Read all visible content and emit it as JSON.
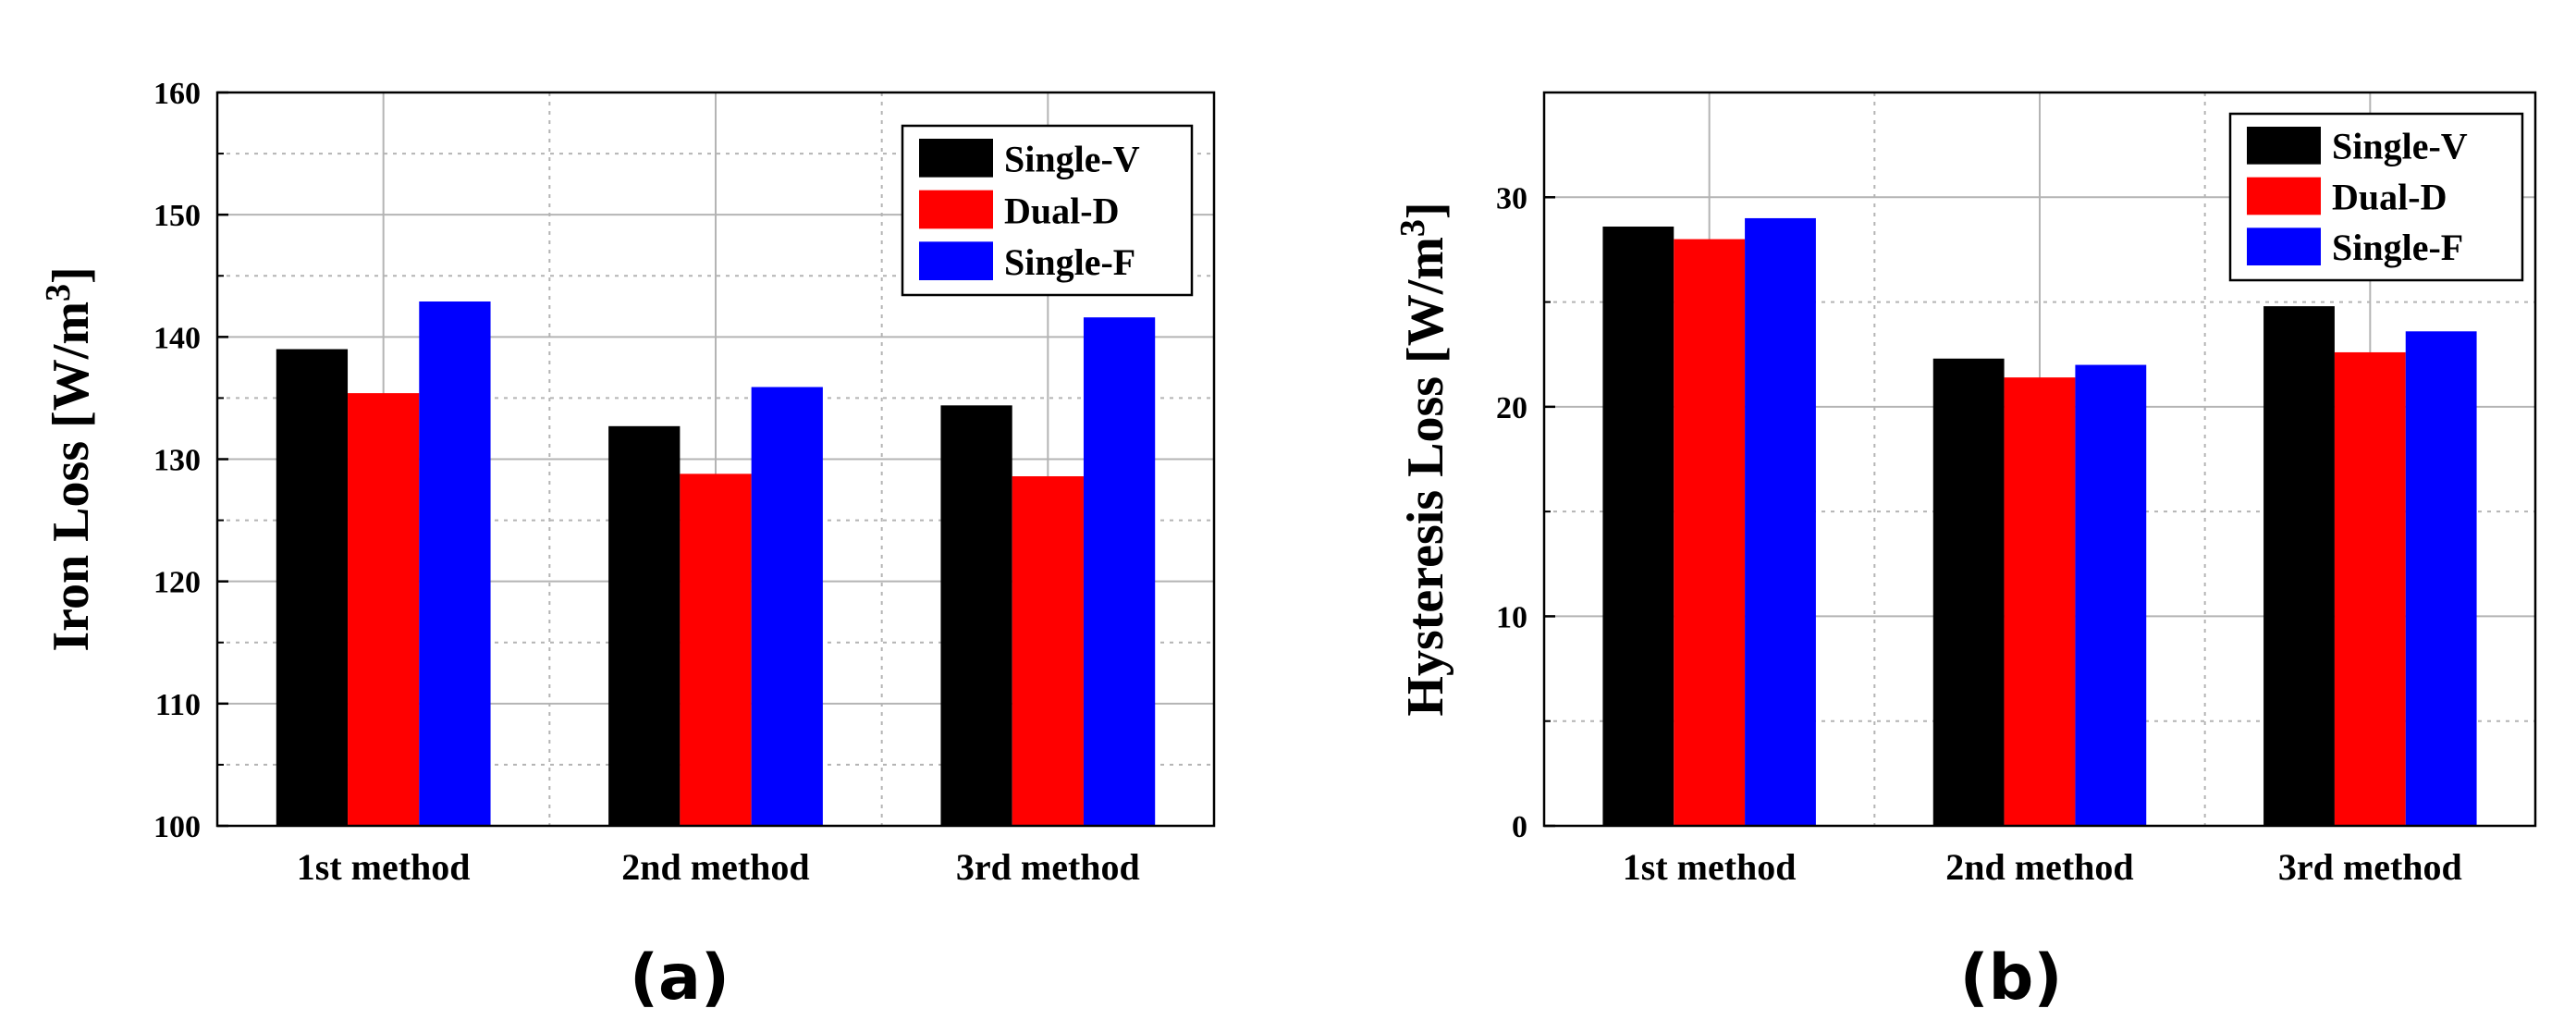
{
  "colors": {
    "Single-V": "#000000",
    "Dual-D": "#ff0000",
    "Single-F": "#0000ff",
    "grid": "#b4b4b4"
  },
  "chart_data": [
    {
      "type": "bar",
      "panel_label": "(a)",
      "categories": [
        "1st method",
        "2nd method",
        "3rd method"
      ],
      "series": [
        {
          "name": "Single-V",
          "values": [
            139.0,
            132.7,
            134.4
          ]
        },
        {
          "name": "Dual-D",
          "values": [
            135.4,
            128.8,
            128.6
          ]
        },
        {
          "name": "Single-F",
          "values": [
            142.9,
            135.9,
            141.6
          ]
        }
      ],
      "ylabel": "Iron Loss [W/m",
      "ylabel_sup": "3",
      "ylabel_end": "]",
      "ylim": [
        100,
        160
      ],
      "yticks": [
        100,
        110,
        120,
        130,
        140,
        150,
        160
      ],
      "minor_grid": [
        105,
        115,
        125,
        135,
        145,
        155
      ],
      "legend_position": "top-right"
    },
    {
      "type": "bar",
      "panel_label": "(b)",
      "categories": [
        "1st method",
        "2nd method",
        "3rd method"
      ],
      "series": [
        {
          "name": "Single-V",
          "values": [
            28.6,
            22.3,
            24.8
          ]
        },
        {
          "name": "Dual-D",
          "values": [
            28.0,
            21.4,
            22.6
          ]
        },
        {
          "name": "Single-F",
          "values": [
            29.0,
            22.0,
            23.6
          ]
        }
      ],
      "ylabel": "Hysteresis Loss [W/m",
      "ylabel_sup": "3",
      "ylabel_end": "]",
      "ylim": [
        0,
        35
      ],
      "yticks": [
        0,
        10,
        20,
        30
      ],
      "minor_grid": [
        5,
        15,
        25
      ],
      "legend_position": "top-right"
    }
  ]
}
